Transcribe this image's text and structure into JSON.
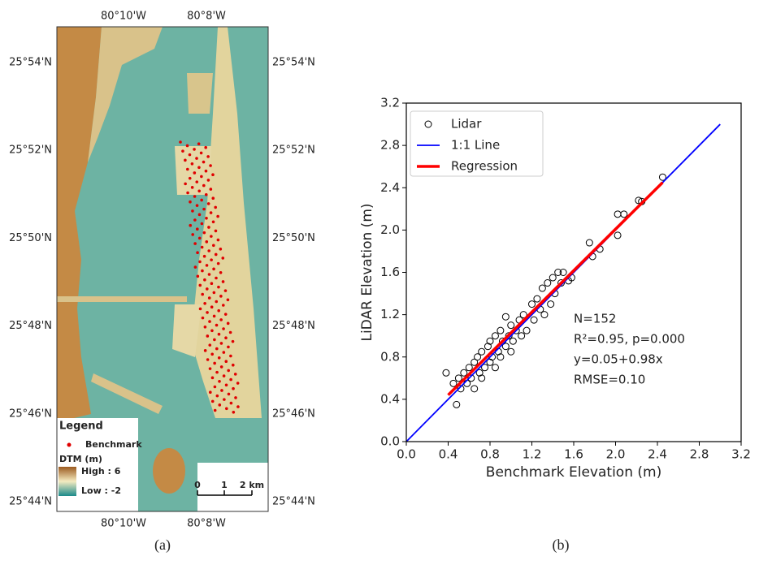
{
  "map": {
    "lon_labels": [
      "80°10'W",
      "80°8'W"
    ],
    "lat_labels": [
      "25°54'N",
      "25°52'N",
      "25°50'N",
      "25°48'N",
      "25°46'N",
      "25°44'N"
    ],
    "legend": {
      "title": "Legend",
      "benchmark": "Benchmark",
      "dtm": "DTM (m)",
      "high": "High : 6",
      "low": "Low : -2"
    },
    "scale": [
      "0",
      "1",
      "2 km"
    ]
  },
  "chart_data": {
    "type": "scatter",
    "xlabel": "Benchmark Elevation (m)",
    "ylabel": "LiDAR Elevation (m)",
    "xlim": [
      0,
      3.2
    ],
    "ylim": [
      0,
      3.2
    ],
    "xticks": [
      {
        "value": 0,
        "label": "0.0"
      },
      {
        "value": 0.4,
        "label": "0.4"
      },
      {
        "value": 0.8,
        "label": "0.8"
      },
      {
        "value": 1.2,
        "label": "1.2"
      },
      {
        "value": 1.6,
        "label": "1.6"
      },
      {
        "value": 2,
        "label": "2.0"
      },
      {
        "value": 2.4,
        "label": "2.4"
      },
      {
        "value": 2.8,
        "label": "2.8"
      },
      {
        "value": 3.2,
        "label": "3.2"
      }
    ],
    "yticks": [
      {
        "value": 0,
        "label": "0.0"
      },
      {
        "value": 0.4,
        "label": "0.4"
      },
      {
        "value": 0.8,
        "label": "0.8"
      },
      {
        "value": 1.2,
        "label": "1.2"
      },
      {
        "value": 1.6,
        "label": "1.6"
      },
      {
        "value": 2,
        "label": "2.0"
      },
      {
        "value": 2.4,
        "label": "2.4"
      },
      {
        "value": 2.8,
        "label": "2.8"
      },
      {
        "value": 3.2,
        "label": "3.2"
      }
    ],
    "legend": "upper left",
    "series": [
      {
        "name": "Lidar",
        "type": "scatter",
        "color": "#000000",
        "x": [
          0.38,
          0.45,
          0.48,
          0.5,
          0.52,
          0.55,
          0.58,
          0.6,
          0.62,
          0.65,
          0.65,
          0.68,
          0.7,
          0.72,
          0.72,
          0.75,
          0.78,
          0.8,
          0.8,
          0.82,
          0.85,
          0.85,
          0.88,
          0.9,
          0.9,
          0.92,
          0.95,
          0.95,
          0.98,
          1.0,
          1.0,
          1.02,
          1.05,
          1.08,
          1.1,
          1.12,
          1.15,
          1.2,
          1.22,
          1.25,
          1.28,
          1.3,
          1.32,
          1.35,
          1.38,
          1.4,
          1.42,
          1.45,
          1.48,
          1.5,
          1.55,
          1.58,
          1.75,
          1.78,
          1.85,
          2.02,
          2.02,
          2.08,
          2.22,
          2.25,
          2.45
        ],
        "values": [
          0.65,
          0.55,
          0.35,
          0.6,
          0.5,
          0.65,
          0.55,
          0.7,
          0.6,
          0.5,
          0.75,
          0.8,
          0.65,
          0.85,
          0.6,
          0.7,
          0.9,
          0.75,
          0.95,
          0.8,
          0.7,
          1.0,
          0.85,
          1.05,
          0.8,
          0.95,
          0.9,
          1.18,
          1.0,
          0.85,
          1.1,
          0.95,
          1.05,
          1.15,
          1.0,
          1.2,
          1.05,
          1.3,
          1.15,
          1.35,
          1.25,
          1.45,
          1.2,
          1.5,
          1.3,
          1.55,
          1.4,
          1.6,
          1.5,
          1.6,
          1.52,
          1.55,
          1.88,
          1.75,
          1.82,
          2.15,
          1.95,
          2.15,
          2.28,
          2.27,
          2.5
        ]
      },
      {
        "name": "1:1 Line",
        "type": "line",
        "color": "#0000ff",
        "x": [
          0,
          3
        ],
        "values": [
          0,
          3
        ]
      },
      {
        "name": "Regression",
        "type": "line",
        "color": "#ff0000",
        "x": [
          0.4,
          2.45
        ],
        "values": [
          0.44,
          2.45
        ]
      }
    ],
    "annotations": [
      "N=152",
      "R²=0.95, p=0.000",
      "y=0.05+0.98x",
      "RMSE=0.10"
    ]
  },
  "captions": [
    "(a)",
    "(b)"
  ]
}
